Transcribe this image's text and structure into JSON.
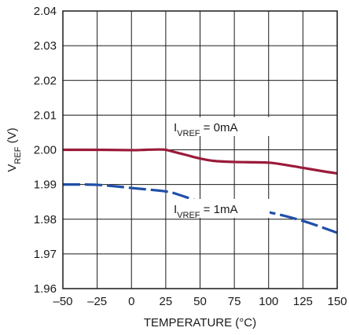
{
  "chart_data": {
    "type": "line",
    "title": "",
    "xlabel": "TEMPERATURE (°C)",
    "ylabel": {
      "main": "V",
      "sub": "REF",
      "unit": " (V)"
    },
    "xlim": [
      -50,
      150
    ],
    "ylim": [
      1.96,
      2.04
    ],
    "xticks": [
      -50,
      -25,
      0,
      25,
      50,
      75,
      100,
      125,
      150
    ],
    "xtick_labels": [
      "–50",
      "–25",
      "0",
      "25",
      "50",
      "75",
      "100",
      "125",
      "150"
    ],
    "yticks": [
      1.96,
      1.97,
      1.98,
      1.99,
      2.0,
      2.01,
      2.02,
      2.03,
      2.04
    ],
    "ytick_labels": [
      "1.96",
      "1.97",
      "1.98",
      "1.99",
      "2.00",
      "2.01",
      "2.02",
      "2.03",
      "2.04"
    ],
    "grid": true,
    "series": [
      {
        "label": {
          "main": "I",
          "sub": "VREF",
          "rest": " = 0mA"
        },
        "color": "#9b1b3a",
        "dash": false,
        "x": [
          -50,
          -25,
          0,
          10,
          20,
          25,
          30,
          40,
          50,
          60,
          75,
          90,
          100,
          110,
          125,
          140,
          150
        ],
        "y": [
          2.0,
          2.0,
          1.9999,
          2.0,
          2.0001,
          2.0,
          1.9995,
          1.9985,
          1.9975,
          1.9968,
          1.9965,
          1.9964,
          1.9963,
          1.9958,
          1.9948,
          1.9938,
          1.9932
        ]
      },
      {
        "label": {
          "main": "I",
          "sub": "VREF",
          "rest": " = 1mA"
        },
        "color": "#1f4fa8",
        "dash": true,
        "x": [
          -50,
          -25,
          0,
          25,
          35,
          50,
          75,
          100,
          125,
          150
        ],
        "y": [
          1.99,
          1.9899,
          1.989,
          1.988,
          1.987,
          1.9851,
          1.9832,
          1.982,
          1.9795,
          1.9761
        ]
      }
    ]
  }
}
